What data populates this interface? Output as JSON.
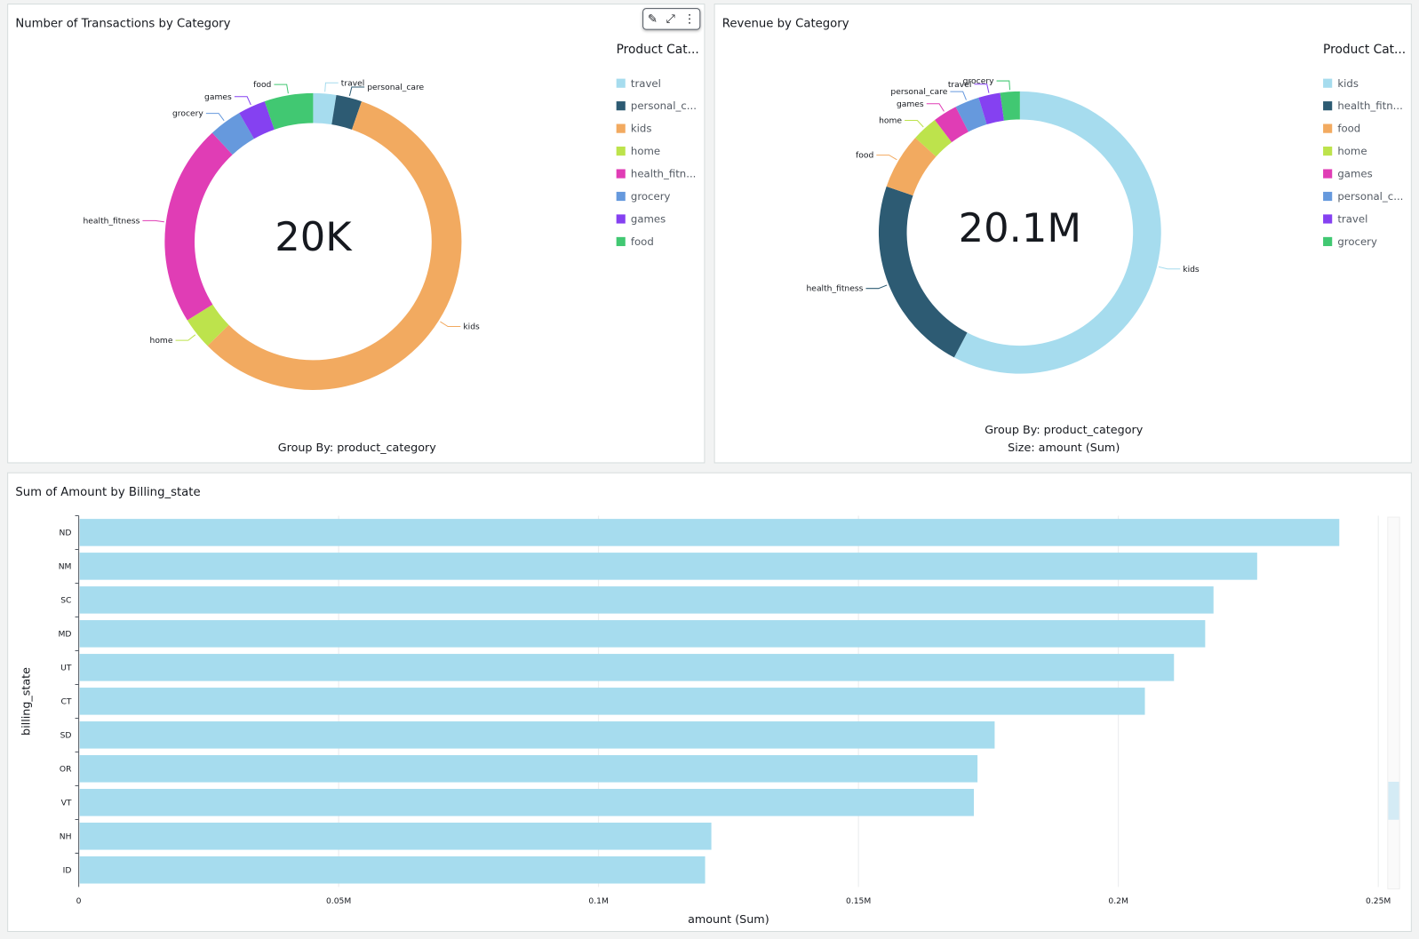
{
  "colors": [
    "#a6dcee",
    "#2d5b73",
    "#f2aa60",
    "#bde34c",
    "#e03db5",
    "#6699dd",
    "#8541f1",
    "#41c872"
  ],
  "bar_color": "#a6dcee",
  "toolbar": {
    "edit_icon": "pencil-icon",
    "expand_icon": "expand-icon",
    "menu_icon": "more-vertical-icon"
  },
  "chart_data": [
    {
      "type": "pie",
      "title": "Number of Transactions by Category",
      "center_label": "20K",
      "legend_title": "Product Cat...",
      "legend": [
        "travel",
        "personal_c...",
        "kids",
        "home",
        "health_fitn...",
        "grocery",
        "games",
        "food"
      ],
      "categories": [
        "travel",
        "personal_care",
        "kids",
        "home",
        "health_fitness",
        "grocery",
        "games",
        "food"
      ],
      "values": [
        500,
        560,
        11460,
        700,
        4400,
        720,
        600,
        1060
      ],
      "footer": [
        "Group By: product_category"
      ]
    },
    {
      "type": "pie",
      "title": "Revenue by Category",
      "center_label": "20.1M",
      "legend_title": "Product Cat...",
      "legend": [
        "kids",
        "health_fitn...",
        "food",
        "home",
        "games",
        "personal_c...",
        "travel",
        "grocery"
      ],
      "categories": [
        "kids",
        "health_fitness",
        "food",
        "home",
        "games",
        "personal_care",
        "travel",
        "grocery"
      ],
      "values": [
        11600000,
        4540000,
        1290000,
        600000,
        560000,
        560000,
        500000,
        450000
      ],
      "footer": [
        "Group By: product_category",
        "Size: amount (Sum)"
      ]
    },
    {
      "type": "bar",
      "orientation": "horizontal",
      "title": "Sum of Amount by Billing_state",
      "xlabel": "amount (Sum)",
      "ylabel": "billing_state",
      "categories": [
        "ND",
        "NM",
        "SC",
        "MD",
        "UT",
        "CT",
        "SD",
        "OR",
        "VT",
        "NH",
        "ID"
      ],
      "values": [
        242500,
        226700,
        218300,
        216700,
        210700,
        205100,
        176200,
        172900,
        172200,
        121700,
        120500
      ],
      "xlim": [
        0,
        250000
      ],
      "xticks": [
        0,
        50000,
        100000,
        150000,
        200000,
        250000
      ],
      "xtick_labels": [
        "0",
        "0.05M",
        "0.1M",
        "0.15M",
        "0.2M",
        "0.25M"
      ],
      "grid": true,
      "scroll_position": 0.72
    }
  ]
}
